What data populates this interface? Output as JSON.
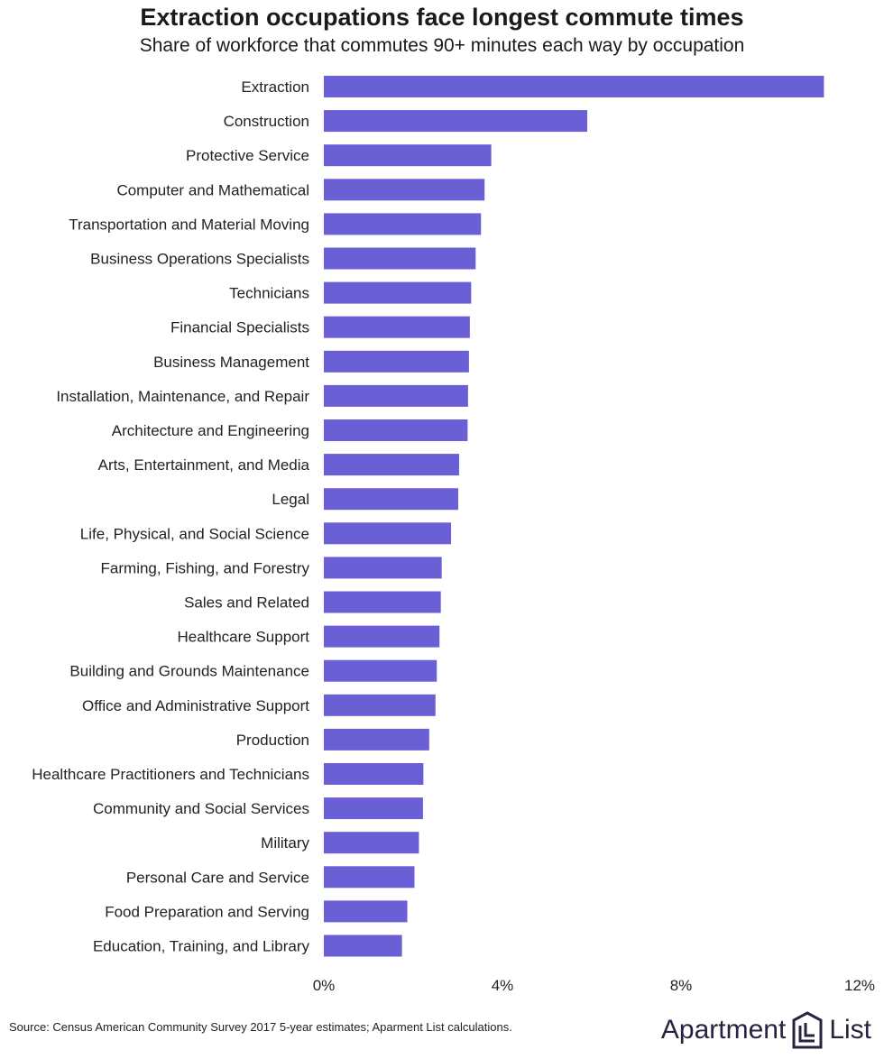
{
  "chart_data": {
    "type": "bar",
    "orientation": "horizontal",
    "title": "Extraction occupations face longest commute times",
    "subtitle": "Share of workforce that commutes 90+ minutes each way by occupation",
    "categories": [
      "Extraction",
      "Construction",
      "Protective Service",
      "Computer and Mathematical",
      "Transportation and Material Moving",
      "Business Operations Specialists",
      "Technicians",
      "Financial Specialists",
      "Business Management",
      "Installation, Maintenance, and Repair",
      "Architecture and Engineering",
      "Arts, Entertainment, and Media",
      "Legal",
      "Life, Physical, and Social Science",
      "Farming, Fishing, and Forestry",
      "Sales and Related",
      "Healthcare Support",
      "Building and Grounds Maintenance",
      "Office and Administrative Support",
      "Production",
      "Healthcare Practitioners and Technicians",
      "Community and Social Services",
      "Military",
      "Personal Care and Service",
      "Food Preparation and Serving",
      "Education, Training, and Library"
    ],
    "values": [
      11.2,
      5.9,
      3.75,
      3.6,
      3.52,
      3.4,
      3.3,
      3.27,
      3.25,
      3.23,
      3.22,
      3.03,
      3.01,
      2.85,
      2.64,
      2.62,
      2.59,
      2.53,
      2.5,
      2.36,
      2.23,
      2.22,
      2.13,
      2.03,
      1.87,
      1.75
    ],
    "unit": "%",
    "xlim": [
      0,
      12
    ],
    "x_ticks": [
      "0%",
      "4%",
      "8%",
      "12%"
    ],
    "grid": false,
    "legend": "none",
    "bar_color": "#6b5fd6"
  },
  "footer": {
    "source": "Source: Census American Community Survey 2017 5-year estimates; Aparment List calculations.",
    "brand_left": "Apartment",
    "brand_right": "List"
  }
}
